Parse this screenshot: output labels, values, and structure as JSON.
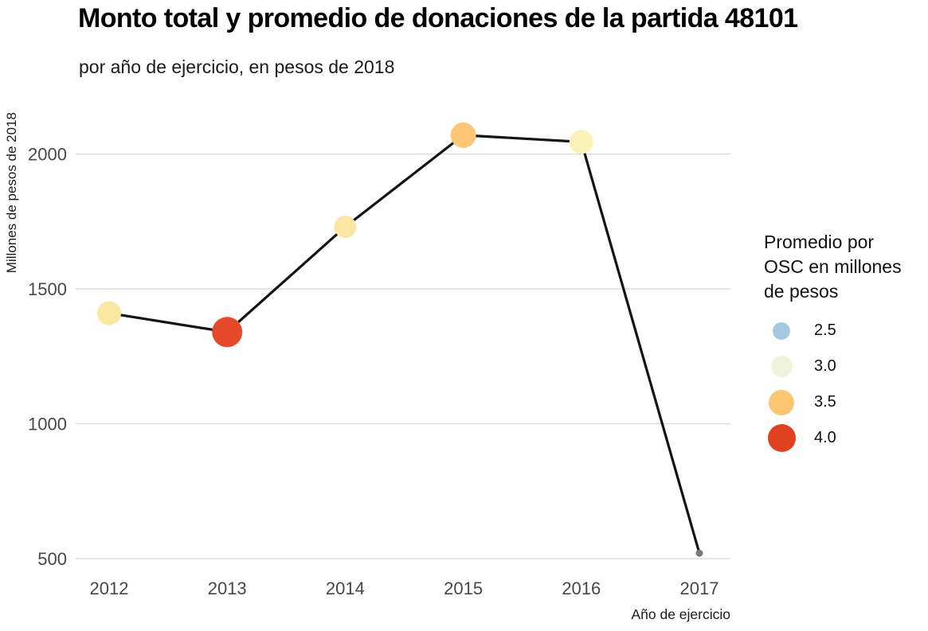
{
  "title": "Monto total y promedio de donaciones de la partida 48101",
  "subtitle": "por año de ejercicio, en pesos de 2018",
  "y_axis": {
    "label": "Millones de pesos de 2018"
  },
  "x_axis": {
    "label": "Año de ejercicio"
  },
  "legend": {
    "title_lines": [
      "Promedio por",
      "OSC en millones",
      "de pesos"
    ],
    "items": [
      {
        "label": "2.5",
        "color": "#a4cae2",
        "diameter": 22
      },
      {
        "label": "3.0",
        "color": "#eff3d9",
        "diameter": 27
      },
      {
        "label": "3.5",
        "color": "#fbc672",
        "diameter": 32
      },
      {
        "label": "4.0",
        "color": "#e0421f",
        "diameter": 35
      }
    ]
  },
  "chart_data": {
    "type": "scatter",
    "title": "Monto total y promedio de donaciones de la partida 48101",
    "subtitle": "por año de ejercicio, en pesos de 2018",
    "xlabel": "Año de ejercicio",
    "ylabel": "Millones de pesos de 2018",
    "x": [
      2012,
      2013,
      2014,
      2015,
      2016,
      2017
    ],
    "y_total_millones": [
      1410,
      1340,
      1730,
      2070,
      2045,
      520
    ],
    "promedio_por_osc": [
      3.2,
      4.0,
      3.2,
      3.5,
      3.1,
      null
    ],
    "point_colors": [
      "#fae8a0",
      "#e5492a",
      "#fae8a2",
      "#fbc776",
      "#fbf2b8",
      "#787878"
    ],
    "point_radii": [
      15,
      19,
      14,
      16,
      15,
      4.5
    ],
    "y_ticks": [
      500,
      1000,
      1500,
      2000
    ],
    "ylim": [
      440,
      2160
    ],
    "grid": "horizontal-only",
    "line_color": "#141414",
    "gridline_color": "#d8d8d8",
    "tick_label_color": "#474747",
    "legend_position": "right",
    "legend_title": "Promedio por OSC en millones de pesos",
    "legend_values": [
      2.5,
      3.0,
      3.5,
      4.0
    ]
  }
}
